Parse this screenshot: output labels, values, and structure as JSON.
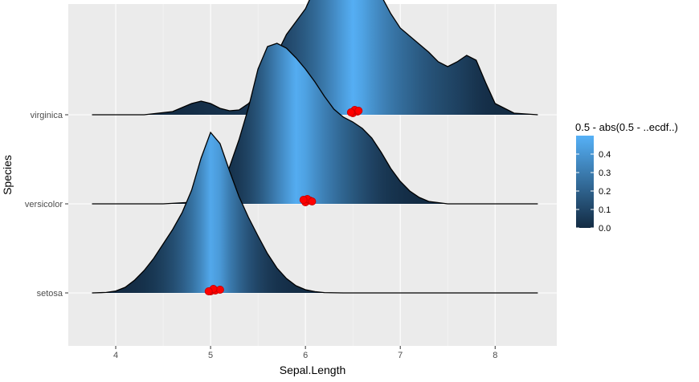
{
  "chart_data": {
    "type": "ridgeline-density",
    "title": "",
    "xlabel": "Sepal.Length",
    "ylabel": "Species",
    "xlim": [
      3.5,
      8.65
    ],
    "x_ticks": [
      4,
      5,
      6,
      7,
      8
    ],
    "categories": [
      "setosa",
      "versicolor",
      "virginica"
    ],
    "grid": true,
    "legend": {
      "title": "0.5 - abs(0.5 - ..ecdf..)",
      "placement": "right",
      "ticks": [
        0.0,
        0.1,
        0.2,
        0.3,
        0.4
      ],
      "range": [
        0.0,
        0.5
      ],
      "color_low": "#132b43",
      "color_high": "#56b1f7"
    },
    "series": [
      {
        "name": "setosa",
        "range": [
          3.75,
          8.45
        ],
        "x": [
          3.75,
          3.9,
          4.0,
          4.1,
          4.2,
          4.3,
          4.4,
          4.5,
          4.6,
          4.7,
          4.8,
          4.9,
          5.0,
          5.1,
          5.2,
          5.3,
          5.4,
          5.5,
          5.6,
          5.7,
          5.8,
          5.9,
          6.0,
          6.1,
          6.2,
          6.4,
          8.45
        ],
        "y": [
          0,
          0.003,
          0.012,
          0.035,
          0.08,
          0.14,
          0.215,
          0.305,
          0.395,
          0.5,
          0.64,
          0.84,
          1.0,
          0.93,
          0.76,
          0.6,
          0.47,
          0.355,
          0.245,
          0.155,
          0.09,
          0.045,
          0.02,
          0.008,
          0.002,
          0,
          0
        ],
        "median": 5.0,
        "points": [
          [
            5.0,
            0.0
          ],
          [
            5.05,
            0.01
          ],
          [
            5.1,
            0.02
          ],
          [
            5.03,
            0.03
          ],
          [
            4.98,
            0.0
          ]
        ]
      },
      {
        "name": "versicolor",
        "range": [
          3.75,
          8.45
        ],
        "x": [
          3.75,
          4.5,
          4.8,
          4.9,
          5.0,
          5.1,
          5.2,
          5.3,
          5.4,
          5.5,
          5.6,
          5.7,
          5.8,
          5.9,
          6.0,
          6.1,
          6.2,
          6.3,
          6.4,
          6.5,
          6.6,
          6.7,
          6.8,
          6.9,
          7.0,
          7.1,
          7.2,
          7.3,
          7.5,
          8.45
        ],
        "y": [
          0,
          0,
          0.01,
          0.02,
          0.05,
          0.1,
          0.23,
          0.4,
          0.6,
          0.84,
          0.98,
          1.0,
          0.97,
          0.91,
          0.84,
          0.76,
          0.67,
          0.59,
          0.54,
          0.51,
          0.47,
          0.41,
          0.32,
          0.22,
          0.14,
          0.08,
          0.04,
          0.015,
          0,
          0
        ],
        "median": 5.9,
        "points": [
          [
            6.0,
            0.0
          ],
          [
            6.05,
            0.02
          ],
          [
            6.02,
            0.04
          ],
          [
            6.07,
            0.01
          ],
          [
            5.98,
            0.03
          ]
        ]
      },
      {
        "name": "virginica",
        "range": [
          3.75,
          8.45
        ],
        "x": [
          3.75,
          4.3,
          4.6,
          4.8,
          4.9,
          5.0,
          5.1,
          5.2,
          5.3,
          5.4,
          5.5,
          5.6,
          5.7,
          5.8,
          5.9,
          6.0,
          6.1,
          6.2,
          6.3,
          6.4,
          6.5,
          6.6,
          6.7,
          6.8,
          6.9,
          7.0,
          7.1,
          7.2,
          7.3,
          7.4,
          7.5,
          7.6,
          7.7,
          7.8,
          7.9,
          8.0,
          8.2,
          8.45
        ],
        "y": [
          0,
          0,
          0.02,
          0.07,
          0.085,
          0.07,
          0.04,
          0.025,
          0.03,
          0.07,
          0.14,
          0.24,
          0.38,
          0.5,
          0.58,
          0.66,
          0.79,
          0.92,
          0.99,
          1.0,
          0.95,
          0.89,
          0.83,
          0.74,
          0.63,
          0.54,
          0.49,
          0.44,
          0.39,
          0.33,
          0.3,
          0.33,
          0.37,
          0.34,
          0.2,
          0.07,
          0.01,
          0
        ],
        "median": 6.5,
        "points": [
          [
            6.5,
            0.0
          ],
          [
            6.55,
            0.02
          ],
          [
            6.52,
            0.04
          ],
          [
            6.48,
            0.01
          ],
          [
            6.56,
            0.03
          ]
        ]
      }
    ]
  }
}
